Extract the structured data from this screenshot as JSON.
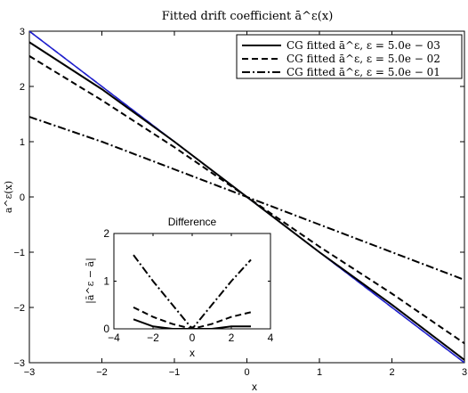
{
  "chart_data": [
    {
      "type": "line",
      "title": "Fitted drift coefficient ā^ε(x)",
      "xlabel": "x",
      "ylabel": "a^ε(x)",
      "xlim": [
        -3,
        3
      ],
      "ylim": [
        -3,
        3
      ],
      "xticks": [
        -3,
        -2,
        -1,
        0,
        1,
        2,
        3
      ],
      "yticks": [
        -3,
        -2,
        -1,
        0,
        1,
        2,
        3
      ],
      "xtick_labels": [
        "−3",
        "−2",
        "−1",
        "0",
        "1",
        "2",
        "3"
      ],
      "ytick_labels": [
        "−3",
        "−2",
        "−1",
        "0",
        "1",
        "2",
        "3"
      ],
      "grid": false,
      "legend_position": "top-right",
      "series": [
        {
          "name": "CG fitted ā^ε, ε = 5.0e − 03",
          "style": "solid",
          "color": "#000000",
          "x": [
            -3,
            -2,
            -1,
            0,
            1,
            2,
            3
          ],
          "y": [
            2.8,
            1.95,
            1.0,
            0.0,
            -1.0,
            -1.95,
            -2.95
          ]
        },
        {
          "name": "CG fitted ā^ε, ε = 5.0e − 02",
          "style": "dashed",
          "color": "#000000",
          "x": [
            -3,
            -2,
            -1,
            0,
            1,
            2,
            3
          ],
          "y": [
            2.55,
            1.75,
            0.9,
            0.0,
            -0.9,
            -1.75,
            -2.65
          ]
        },
        {
          "name": "CG fitted ā^ε, ε = 5.0e − 01",
          "style": "dashdot",
          "color": "#000000",
          "x": [
            -3,
            -2,
            -1,
            0,
            1,
            2,
            3
          ],
          "y": [
            1.45,
            1.0,
            0.5,
            0.0,
            -0.5,
            -1.0,
            -1.5
          ]
        },
        {
          "name": "",
          "style": "solid",
          "color": "#1f1fcc",
          "x": [
            -3,
            3
          ],
          "y": [
            3,
            -3
          ]
        },
        {
          "name": "",
          "style": "dashed",
          "color": "#1f1fcc",
          "x": [
            -3,
            3
          ],
          "y": [
            3,
            -3
          ]
        }
      ]
    },
    {
      "type": "line",
      "title": "Difference",
      "xlabel": "x",
      "ylabel": "|ā^ε − ā|",
      "xlim": [
        -4,
        4
      ],
      "ylim": [
        0,
        2
      ],
      "xticks": [
        -4,
        -2,
        0,
        2,
        4
      ],
      "yticks": [
        0,
        1,
        2
      ],
      "xtick_labels": [
        "−4",
        "−2",
        "0",
        "2",
        "4"
      ],
      "ytick_labels": [
        "0",
        "1",
        "2"
      ],
      "grid": false,
      "series": [
        {
          "style": "solid",
          "color": "#000000",
          "x": [
            -3,
            -2,
            -1,
            0,
            1,
            2,
            3
          ],
          "y": [
            0.2,
            0.05,
            0.0,
            0.0,
            0.0,
            0.05,
            0.05
          ]
        },
        {
          "style": "dashed",
          "color": "#000000",
          "x": [
            -3,
            -2,
            -1,
            0,
            1,
            2,
            3
          ],
          "y": [
            0.45,
            0.25,
            0.1,
            0.0,
            0.1,
            0.25,
            0.35
          ]
        },
        {
          "style": "dashdot",
          "color": "#000000",
          "x": [
            -3,
            -2,
            -1,
            0,
            1,
            2,
            3
          ],
          "y": [
            1.55,
            1.0,
            0.5,
            0.0,
            0.5,
            1.0,
            1.45
          ]
        }
      ]
    }
  ]
}
